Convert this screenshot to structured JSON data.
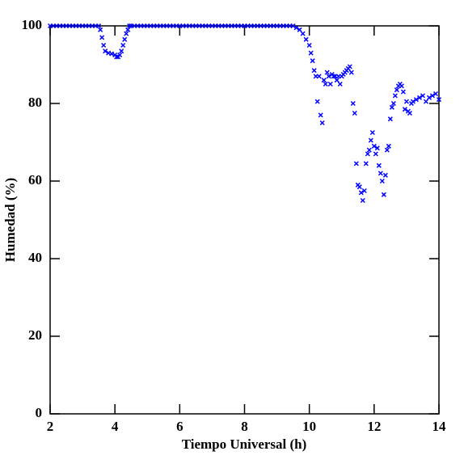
{
  "chart_data": {
    "type": "scatter",
    "xlabel": "Tiempo Universal (h)",
    "ylabel": "Humedad (%)",
    "xlim": [
      2,
      14
    ],
    "ylim": [
      0,
      100
    ],
    "xticks": [
      2,
      4,
      6,
      8,
      10,
      12,
      14
    ],
    "yticks": [
      0,
      20,
      40,
      60,
      80,
      100
    ],
    "series": [
      {
        "color": "#0000ff",
        "x": [
          2.0,
          2.1,
          2.2,
          2.3,
          2.4,
          2.5,
          2.6,
          2.7,
          2.8,
          2.9,
          3.0,
          3.1,
          3.2,
          3.3,
          3.4,
          3.5,
          3.55,
          3.6,
          3.65,
          3.7,
          3.8,
          3.9,
          4.0,
          4.05,
          4.1,
          4.15,
          4.2,
          4.25,
          4.3,
          4.35,
          4.4,
          4.45,
          4.5,
          4.6,
          4.7,
          4.8,
          4.9,
          5.0,
          5.1,
          5.2,
          5.3,
          5.4,
          5.5,
          5.6,
          5.7,
          5.8,
          5.9,
          6.0,
          6.1,
          6.2,
          6.3,
          6.4,
          6.5,
          6.6,
          6.7,
          6.8,
          6.9,
          7.0,
          7.1,
          7.2,
          7.3,
          7.4,
          7.5,
          7.6,
          7.7,
          7.8,
          7.9,
          8.0,
          8.1,
          8.2,
          8.3,
          8.4,
          8.5,
          8.6,
          8.7,
          8.8,
          8.9,
          9.0,
          9.1,
          9.2,
          9.3,
          9.4,
          9.5,
          9.6,
          9.7,
          9.8,
          9.9,
          10.0,
          10.05,
          10.1,
          10.15,
          10.2,
          10.25,
          10.3,
          10.35,
          10.4,
          10.45,
          10.5,
          10.55,
          10.6,
          10.65,
          10.7,
          10.75,
          10.8,
          10.85,
          10.9,
          10.95,
          11.0,
          11.05,
          11.1,
          11.15,
          11.2,
          11.25,
          11.3,
          11.35,
          11.4,
          11.45,
          11.5,
          11.55,
          11.6,
          11.65,
          11.7,
          11.75,
          11.8,
          11.85,
          11.9,
          11.95,
          12.0,
          12.05,
          12.1,
          12.15,
          12.2,
          12.25,
          12.3,
          12.35,
          12.4,
          12.45,
          12.5,
          12.55,
          12.6,
          12.65,
          12.7,
          12.75,
          12.8,
          12.85,
          12.9,
          12.95,
          13.0,
          13.05,
          13.1,
          13.15,
          13.2,
          13.3,
          13.4,
          13.5,
          13.6,
          13.7,
          13.8,
          13.9,
          14.0
        ],
        "values": [
          100,
          100,
          100,
          100,
          100,
          100,
          100,
          100,
          100,
          100,
          100,
          100,
          100,
          100,
          100,
          100,
          99,
          97,
          95,
          93.5,
          93,
          92.8,
          92.5,
          92,
          92,
          92.5,
          93.5,
          95,
          96.5,
          98,
          99,
          100,
          100,
          100,
          100,
          100,
          100,
          100,
          100,
          100,
          100,
          100,
          100,
          100,
          100,
          100,
          100,
          100,
          100,
          100,
          100,
          100,
          100,
          100,
          100,
          100,
          100,
          100,
          100,
          100,
          100,
          100,
          100,
          100,
          100,
          100,
          100,
          100,
          100,
          100,
          100,
          100,
          100,
          100,
          100,
          100,
          100,
          100,
          100,
          100,
          100,
          100,
          100,
          99.5,
          99,
          98,
          96.5,
          95,
          93,
          91,
          88.5,
          87,
          80.5,
          87,
          77,
          75,
          86,
          85,
          88,
          87,
          85,
          87.5,
          87,
          87,
          86,
          87,
          85,
          87,
          87.5,
          88,
          88.5,
          89,
          89.5,
          88,
          80,
          77.5,
          64.5,
          59,
          58.5,
          57,
          55,
          57.5,
          64.5,
          67,
          68,
          70.5,
          72.5,
          69,
          67,
          68.5,
          64,
          62,
          60,
          56.5,
          61.5,
          68,
          69,
          76,
          79,
          80,
          82,
          83.5,
          84.5,
          85,
          84.5,
          83,
          78.5,
          80.5,
          78,
          77.5,
          80,
          80.5,
          81,
          81.5,
          82,
          80.5,
          81.5,
          82,
          82.5,
          81
        ]
      }
    ]
  }
}
